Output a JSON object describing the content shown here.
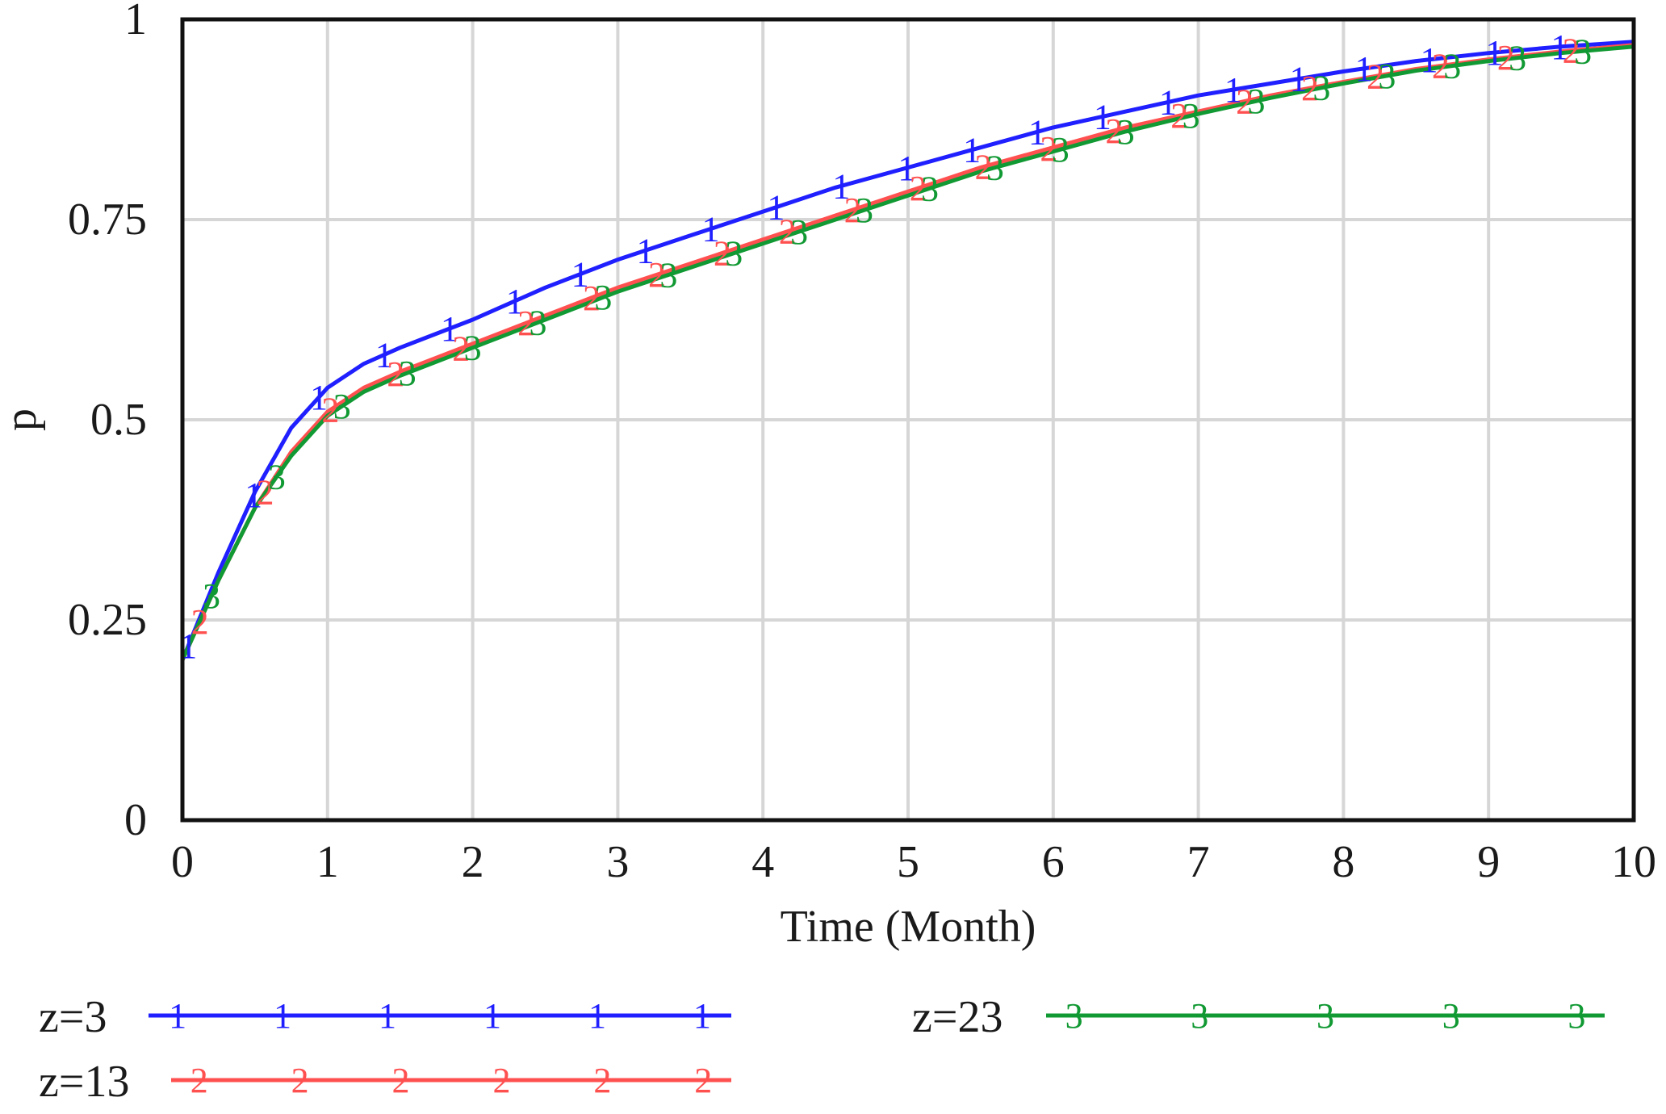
{
  "chart_data": {
    "type": "line",
    "title": "",
    "xlabel": "Time (Month)",
    "ylabel": "p",
    "xlim": [
      0,
      10
    ],
    "ylim": [
      0,
      1
    ],
    "xticks": [
      0,
      1,
      2,
      3,
      4,
      5,
      6,
      7,
      8,
      9,
      10
    ],
    "yticks": [
      0,
      0.25,
      0.5,
      0.75,
      1
    ],
    "ytick_labels": [
      "0",
      "0.25",
      "0.5",
      "0.75",
      "1"
    ],
    "grid": true,
    "legend_position": "bottom",
    "series": [
      {
        "name": "z=3",
        "marker": "1",
        "color": "#1f1fff",
        "x": [
          0,
          0.25,
          0.5,
          0.75,
          1,
          1.25,
          1.5,
          2,
          2.5,
          3,
          3.5,
          4,
          4.5,
          5,
          5.5,
          6,
          6.5,
          7,
          7.5,
          8,
          8.5,
          9,
          9.5,
          10
        ],
        "y": [
          0.2,
          0.31,
          0.41,
          0.49,
          0.54,
          0.57,
          0.59,
          0.625,
          0.665,
          0.7,
          0.73,
          0.76,
          0.79,
          0.815,
          0.84,
          0.865,
          0.885,
          0.905,
          0.92,
          0.935,
          0.948,
          0.958,
          0.966,
          0.972
        ]
      },
      {
        "name": "z=13",
        "marker": "2",
        "color": "#ff5050",
        "x": [
          0,
          0.25,
          0.5,
          0.75,
          1,
          1.25,
          1.5,
          2,
          2.5,
          3,
          3.5,
          4,
          4.5,
          5,
          5.5,
          6,
          6.5,
          7,
          7.5,
          8,
          8.5,
          9,
          9.5,
          10
        ],
        "y": [
          0.2,
          0.3,
          0.39,
          0.46,
          0.51,
          0.54,
          0.56,
          0.595,
          0.63,
          0.665,
          0.695,
          0.725,
          0.755,
          0.785,
          0.815,
          0.84,
          0.865,
          0.885,
          0.905,
          0.922,
          0.938,
          0.95,
          0.96,
          0.968
        ]
      },
      {
        "name": "z=23",
        "marker": "3",
        "color": "#119933",
        "x": [
          0,
          0.25,
          0.5,
          0.75,
          1,
          1.25,
          1.5,
          2,
          2.5,
          3,
          3.5,
          4,
          4.5,
          5,
          5.5,
          6,
          6.5,
          7,
          7.5,
          8,
          8.5,
          9,
          9.5,
          10
        ],
        "y": [
          0.2,
          0.3,
          0.39,
          0.455,
          0.505,
          0.535,
          0.555,
          0.59,
          0.625,
          0.66,
          0.69,
          0.72,
          0.75,
          0.78,
          0.81,
          0.835,
          0.86,
          0.882,
          0.902,
          0.92,
          0.936,
          0.948,
          0.958,
          0.966
        ]
      }
    ]
  },
  "colors": {
    "frame": "#111111",
    "grid": "#d6d6d6",
    "background": "#ffffff"
  }
}
